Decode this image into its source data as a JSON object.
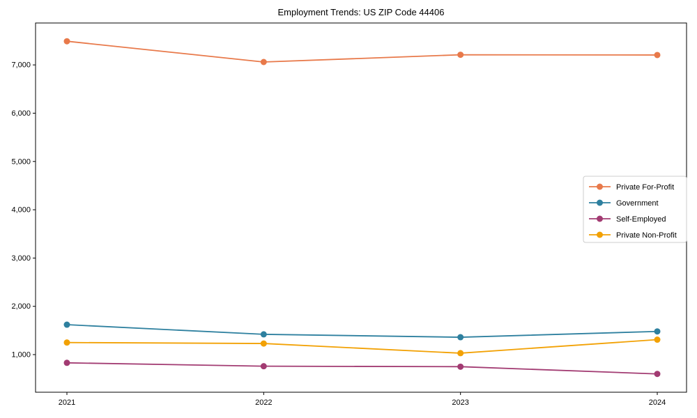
{
  "chart_data": {
    "type": "line",
    "title": "Employment Trends: US ZIP Code 44406",
    "categories": [
      "2021",
      "2022",
      "2023",
      "2024"
    ],
    "series": [
      {
        "name": "Private For-Profit",
        "color": "#E8794A",
        "values": [
          7490,
          7060,
          7210,
          7205
        ]
      },
      {
        "name": "Government",
        "color": "#2E809F",
        "values": [
          1620,
          1420,
          1360,
          1480
        ]
      },
      {
        "name": "Self-Employed",
        "color": "#A23B72",
        "values": [
          830,
          760,
          750,
          600
        ]
      },
      {
        "name": "Private Non-Profit",
        "color": "#F2A104",
        "values": [
          1250,
          1230,
          1030,
          1310
        ]
      }
    ],
    "xlabel": "",
    "ylabel": "",
    "ylim": [
      221,
      7868
    ],
    "yticks": [
      1000,
      2000,
      3000,
      4000,
      5000,
      6000,
      7000
    ],
    "ytick_labels": [
      "1,000",
      "2,000",
      "3,000",
      "4,000",
      "5,000",
      "6,000",
      "7,000"
    ],
    "grid": false,
    "legend_position": "center-right",
    "marker": "circle",
    "spine_color": "#000000",
    "background_color": "#ffffff",
    "legend_border_color": "#cccccc"
  }
}
